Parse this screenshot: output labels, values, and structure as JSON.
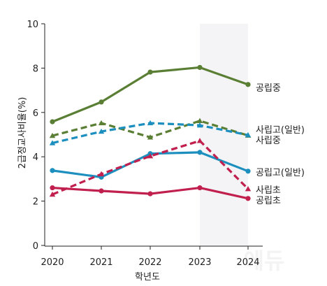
{
  "chart_data": {
    "type": "line",
    "x": [
      2020,
      2021,
      2022,
      2023,
      2024
    ],
    "xlabel": "학년도",
    "ylabel": "2급정교사비율(%)",
    "ylim": [
      0,
      10
    ],
    "yticks": [
      0,
      2,
      4,
      6,
      8,
      10
    ],
    "grid": false,
    "legend": "none",
    "highlight_band_year": 2023,
    "series": [
      {
        "name": "공립중",
        "values": [
          5.58,
          6.47,
          7.82,
          8.03,
          7.26
        ],
        "color": "#5a7f34",
        "dashed": false,
        "marker": "circle"
      },
      {
        "name": "사립고(일반)",
        "values": [
          4.95,
          5.52,
          4.88,
          5.62,
          4.96
        ],
        "color": "#5a7f34",
        "dashed": true,
        "marker": "triangle"
      },
      {
        "name": "사립중",
        "values": [
          4.62,
          5.14,
          5.52,
          5.42,
          4.98
        ],
        "color": "#1d8fbf",
        "dashed": true,
        "marker": "triangle"
      },
      {
        "name": "공립고(일반)",
        "values": [
          3.38,
          3.08,
          4.14,
          4.2,
          3.35
        ],
        "color": "#1d8fbf",
        "dashed": false,
        "marker": "circle"
      },
      {
        "name": "사립초",
        "values": [
          2.3,
          3.22,
          4.03,
          4.72,
          2.55
        ],
        "color": "#c1204f",
        "dashed": true,
        "marker": "triangle"
      },
      {
        "name": "공립초",
        "values": [
          2.6,
          2.46,
          2.33,
          2.6,
          2.12
        ],
        "color": "#c1204f",
        "dashed": false,
        "marker": "circle"
      }
    ],
    "labels": [
      {
        "text": "공립중",
        "series": 0
      },
      {
        "text": "사립고(일반)",
        "series": 1
      },
      {
        "text": "사립중",
        "series": 2
      },
      {
        "text": "공립고(일반)",
        "series": 3
      },
      {
        "text": "사립초",
        "series": 4
      },
      {
        "text": "공립초",
        "series": 5
      }
    ],
    "watermark": "에듀"
  }
}
